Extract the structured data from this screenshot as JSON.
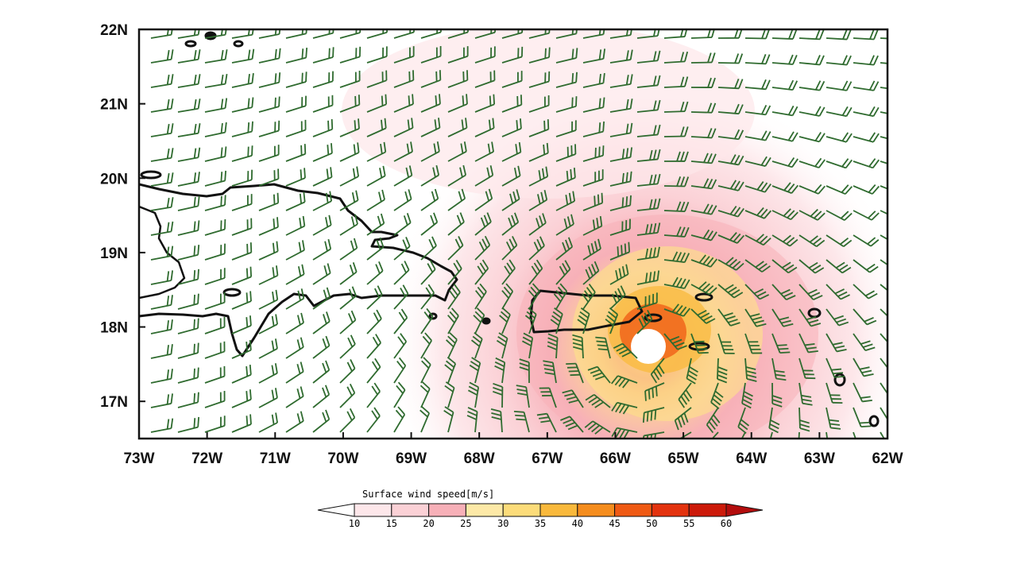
{
  "map": {
    "lon_range": [
      -73,
      -62
    ],
    "lat_range": [
      16.5,
      22
    ],
    "lon_ticks": [
      "73W",
      "72W",
      "71W",
      "70W",
      "69W",
      "68W",
      "67W",
      "66W",
      "65W",
      "64W",
      "63W",
      "62W"
    ],
    "lat_ticks": [
      "17N",
      "18N",
      "19N",
      "20N",
      "21N",
      "22N"
    ],
    "storm_center": {
      "lon": -65.5,
      "lat": 17.75
    },
    "field": "wind speed shaded + wind barbs",
    "colors": {
      "barb": "#2f6b2f",
      "coast": "#111111",
      "frame": "#111111"
    }
  },
  "colorbar": {
    "title": "Surface wind speed[m/s]",
    "levels": [
      "10",
      "15",
      "20",
      "25",
      "30",
      "35",
      "40",
      "45",
      "50",
      "55",
      "60"
    ],
    "colors": [
      "#ffffff",
      "#fde7ea",
      "#fbd1d6",
      "#f7b0b8",
      "#fde9a7",
      "#fcdc7a",
      "#f9b93c",
      "#f58d1e",
      "#ef5a14",
      "#e3330f",
      "#cc1a0a",
      "#b30d0d"
    ]
  }
}
